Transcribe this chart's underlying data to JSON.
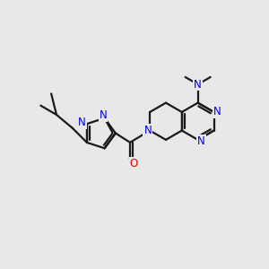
{
  "background_color": "#e8e8e8",
  "bond_color": "#1a1a1a",
  "nitrogen_color": "#0000dd",
  "oxygen_color": "#dd0000",
  "line_width": 1.6,
  "font_size": 8.5,
  "figsize": [
    3.0,
    3.0
  ],
  "dpi": 100,
  "xlim": [
    0,
    10
  ],
  "ylim": [
    0,
    10
  ]
}
